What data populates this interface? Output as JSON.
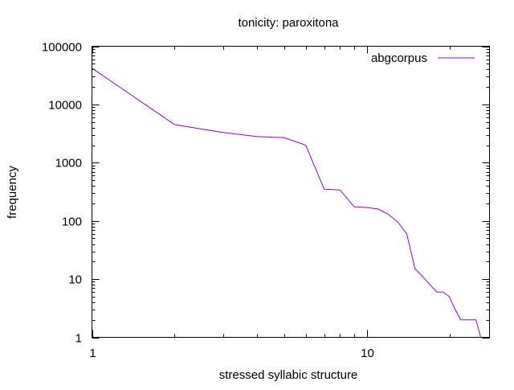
{
  "chart_data": {
    "type": "line",
    "title": "tonicity: paroxitona",
    "xlabel": "stressed syllabic structure",
    "ylabel": "frequency",
    "x_scale": "log",
    "y_scale": "log",
    "xlim": [
      1,
      28
    ],
    "ylim": [
      1,
      100000
    ],
    "x_ticks": [
      1,
      10
    ],
    "y_ticks": [
      1,
      10,
      100,
      1000,
      10000,
      100000
    ],
    "x_tick_labels": [
      "1",
      "10"
    ],
    "y_tick_labels": [
      "1",
      "10",
      "100",
      "1000",
      "10000",
      "100000"
    ],
    "grid": false,
    "legend": "top-right",
    "line_color": "#9400d3",
    "series": [
      {
        "name": "abgcorpus",
        "x": [
          1,
          2,
          3,
          4,
          5,
          6,
          7,
          8,
          9,
          10,
          11,
          12,
          13,
          14,
          15,
          16,
          17,
          18,
          19,
          20,
          21,
          22,
          23,
          24,
          25,
          26
        ],
        "y": [
          42000,
          4500,
          3300,
          2800,
          2700,
          2000,
          350,
          340,
          175,
          170,
          160,
          130,
          95,
          60,
          15,
          11,
          8,
          6,
          6,
          5,
          3,
          2,
          2,
          2,
          2,
          1
        ]
      }
    ]
  }
}
